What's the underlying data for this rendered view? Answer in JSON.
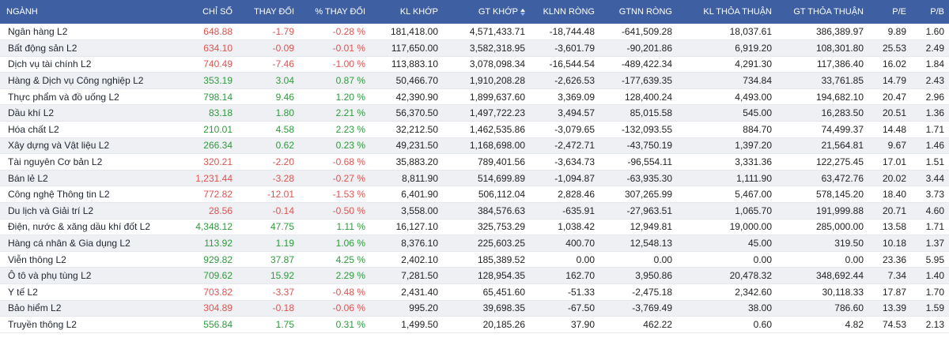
{
  "headers": {
    "name": "NGÀNH",
    "index": "CHỈ SỐ",
    "change": "THAY ĐỔI",
    "pct": "% THAY ĐỔI",
    "vol": "KL KHỚP",
    "val": "GT KHỚP",
    "klnn": "KLNN RÒNG",
    "gtnn": "GTNN RÒNG",
    "kltt": "KL THỎA THUẬN",
    "gttt": "GT THỎA THUẬN",
    "pe": "P/E",
    "pb": "P/B"
  },
  "colors": {
    "header_bg": "#3f5fa3",
    "up": "#2e9b3c",
    "down": "#e05350"
  },
  "rows": [
    {
      "name": "Ngân hàng L2",
      "index": "648.88",
      "change": "-1.79",
      "pct": "-0.28 %",
      "vol": "181,418.00",
      "val": "4,571,433.71",
      "klnn": "-18,744.48",
      "gtnn": "-641,509.28",
      "kltt": "18,037.61",
      "gttt": "386,389.97",
      "pe": "9.89",
      "pb": "1.60",
      "dir": "down"
    },
    {
      "name": "Bất động sản L2",
      "index": "634.10",
      "change": "-0.09",
      "pct": "-0.01 %",
      "vol": "117,650.00",
      "val": "3,582,318.95",
      "klnn": "-3,601.79",
      "gtnn": "-90,201.86",
      "kltt": "6,919.20",
      "gttt": "108,301.80",
      "pe": "25.53",
      "pb": "2.49",
      "dir": "down"
    },
    {
      "name": "Dịch vụ tài chính L2",
      "index": "740.49",
      "change": "-7.46",
      "pct": "-1.00 %",
      "vol": "113,883.10",
      "val": "3,078,098.34",
      "klnn": "-16,544.54",
      "gtnn": "-489,422.34",
      "kltt": "4,291.30",
      "gttt": "117,386.40",
      "pe": "16.02",
      "pb": "1.84",
      "dir": "down"
    },
    {
      "name": "Hàng & Dịch vụ Công nghiệp L2",
      "index": "353.19",
      "change": "3.04",
      "pct": "0.87 %",
      "vol": "50,466.70",
      "val": "1,910,208.28",
      "klnn": "-2,626.53",
      "gtnn": "-177,639.35",
      "kltt": "734.84",
      "gttt": "33,761.85",
      "pe": "14.79",
      "pb": "2.43",
      "dir": "up"
    },
    {
      "name": "Thực phẩm và đồ uống L2",
      "index": "798.14",
      "change": "9.46",
      "pct": "1.20 %",
      "vol": "42,390.90",
      "val": "1,899,637.60",
      "klnn": "3,369.09",
      "gtnn": "128,400.24",
      "kltt": "4,493.00",
      "gttt": "194,682.10",
      "pe": "20.47",
      "pb": "2.96",
      "dir": "up"
    },
    {
      "name": "Dầu khí L2",
      "index": "83.18",
      "change": "1.80",
      "pct": "2.21 %",
      "vol": "56,370.50",
      "val": "1,497,722.23",
      "klnn": "3,494.57",
      "gtnn": "85,015.58",
      "kltt": "545.00",
      "gttt": "16,283.50",
      "pe": "20.51",
      "pb": "1.36",
      "dir": "up"
    },
    {
      "name": "Hóa chất L2",
      "index": "210.01",
      "change": "4.58",
      "pct": "2.23 %",
      "vol": "32,212.50",
      "val": "1,462,535.86",
      "klnn": "-3,079.65",
      "gtnn": "-132,093.55",
      "kltt": "884.70",
      "gttt": "74,499.37",
      "pe": "14.48",
      "pb": "1.71",
      "dir": "up"
    },
    {
      "name": "Xây dựng và Vật liệu L2",
      "index": "266.34",
      "change": "0.62",
      "pct": "0.23 %",
      "vol": "49,231.50",
      "val": "1,168,698.00",
      "klnn": "-2,472.71",
      "gtnn": "-43,750.19",
      "kltt": "1,397.20",
      "gttt": "21,564.81",
      "pe": "9.67",
      "pb": "1.46",
      "dir": "up"
    },
    {
      "name": "Tài nguyên Cơ bản L2",
      "index": "320.21",
      "change": "-2.20",
      "pct": "-0.68 %",
      "vol": "35,883.20",
      "val": "789,401.56",
      "klnn": "-3,634.73",
      "gtnn": "-96,554.11",
      "kltt": "3,331.36",
      "gttt": "122,275.45",
      "pe": "17.01",
      "pb": "1.51",
      "dir": "down"
    },
    {
      "name": "Bán lẻ L2",
      "index": "1,231.44",
      "change": "-3.28",
      "pct": "-0.27 %",
      "vol": "8,811.90",
      "val": "514,699.89",
      "klnn": "-1,094.87",
      "gtnn": "-63,935.30",
      "kltt": "1,111.90",
      "gttt": "63,472.76",
      "pe": "20.02",
      "pb": "3.44",
      "dir": "down"
    },
    {
      "name": "Công nghệ Thông tin L2",
      "index": "772.82",
      "change": "-12.01",
      "pct": "-1.53 %",
      "vol": "6,401.90",
      "val": "506,112.04",
      "klnn": "2,828.46",
      "gtnn": "307,265.99",
      "kltt": "5,467.00",
      "gttt": "578,145.20",
      "pe": "18.40",
      "pb": "3.73",
      "dir": "down"
    },
    {
      "name": "Du lịch và Giải trí L2",
      "index": "28.56",
      "change": "-0.14",
      "pct": "-0.50 %",
      "vol": "3,558.00",
      "val": "384,576.63",
      "klnn": "-635.91",
      "gtnn": "-27,963.51",
      "kltt": "1,065.70",
      "gttt": "191,999.88",
      "pe": "20.71",
      "pb": "4.60",
      "dir": "down"
    },
    {
      "name": "Điện, nước & xăng dầu khí đốt L2",
      "index": "4,348.12",
      "change": "47.75",
      "pct": "1.11 %",
      "vol": "16,127.10",
      "val": "325,753.29",
      "klnn": "1,038.42",
      "gtnn": "12,949.81",
      "kltt": "19,000.00",
      "gttt": "285,000.00",
      "pe": "13.58",
      "pb": "1.71",
      "dir": "up"
    },
    {
      "name": "Hàng cá nhân & Gia dụng L2",
      "index": "113.92",
      "change": "1.19",
      "pct": "1.06 %",
      "vol": "8,376.10",
      "val": "225,603.25",
      "klnn": "400.70",
      "gtnn": "12,548.13",
      "kltt": "45.00",
      "gttt": "319.50",
      "pe": "10.18",
      "pb": "1.37",
      "dir": "up"
    },
    {
      "name": "Viễn thông L2",
      "index": "929.82",
      "change": "37.87",
      "pct": "4.25 %",
      "vol": "2,402.10",
      "val": "185,389.52",
      "klnn": "0.00",
      "gtnn": "0.00",
      "kltt": "0.00",
      "gttt": "0.00",
      "pe": "23.36",
      "pb": "5.95",
      "dir": "up"
    },
    {
      "name": "Ô tô và phụ tùng L2",
      "index": "709.62",
      "change": "15.92",
      "pct": "2.29 %",
      "vol": "7,281.50",
      "val": "128,954.35",
      "klnn": "162.70",
      "gtnn": "3,950.86",
      "kltt": "20,478.32",
      "gttt": "348,692.44",
      "pe": "7.34",
      "pb": "1.40",
      "dir": "up"
    },
    {
      "name": "Y tế L2",
      "index": "703.82",
      "change": "-3.37",
      "pct": "-0.48 %",
      "vol": "2,431.40",
      "val": "65,451.60",
      "klnn": "-51.33",
      "gtnn": "-2,475.18",
      "kltt": "2,342.60",
      "gttt": "30,118.33",
      "pe": "17.87",
      "pb": "1.70",
      "dir": "down"
    },
    {
      "name": "Bảo hiểm L2",
      "index": "304.89",
      "change": "-0.18",
      "pct": "-0.06 %",
      "vol": "995.20",
      "val": "39,698.35",
      "klnn": "-67.50",
      "gtnn": "-3,769.49",
      "kltt": "38.00",
      "gttt": "786.60",
      "pe": "13.39",
      "pb": "1.59",
      "dir": "down"
    },
    {
      "name": "Truyền thông L2",
      "index": "556.84",
      "change": "1.75",
      "pct": "0.31 %",
      "vol": "1,499.50",
      "val": "20,185.26",
      "klnn": "37.90",
      "gtnn": "462.22",
      "kltt": "0.60",
      "gttt": "4.82",
      "pe": "74.53",
      "pb": "2.13",
      "dir": "up"
    }
  ]
}
